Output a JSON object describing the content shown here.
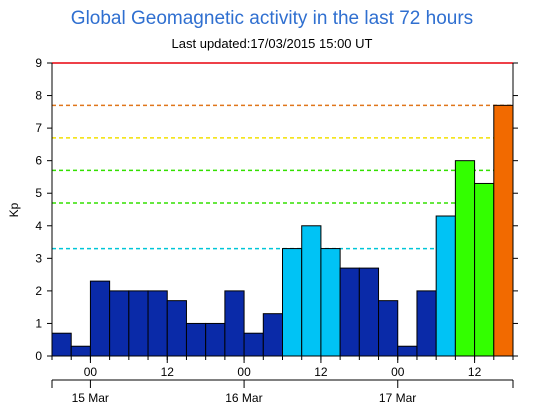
{
  "title": "Global Geomagnetic activity in the last 72 hours",
  "subtitle": "Last updated:17/03/2015 15:00 UT",
  "colors": {
    "quiet": "#0a2aa8",
    "kp4": "#00c3f5",
    "kp5": "#33ff00",
    "kp6": "#33ff00",
    "kp7": "#f26a00",
    "edge": "#000000"
  },
  "chart_data": {
    "type": "bar",
    "ylabel": "Kp",
    "xlabel": "",
    "ylim": [
      0,
      9
    ],
    "yticks": [
      "0",
      "1",
      "2",
      "3",
      "4",
      "5",
      "6",
      "7",
      "8",
      "9"
    ],
    "xticks": [
      "00",
      "12",
      "00",
      "12",
      "00",
      "12"
    ],
    "day_labels": [
      "15 Mar",
      "16 Mar",
      "17 Mar"
    ],
    "values": [
      0.7,
      0.3,
      2.3,
      2.0,
      2.0,
      2.0,
      1.7,
      1.0,
      1.0,
      2.0,
      0.7,
      1.3,
      3.3,
      4.0,
      3.3,
      2.7,
      2.7,
      1.7,
      0.3,
      2.0,
      4.3,
      6.0,
      5.3,
      7.7
    ],
    "threshold_lines": [
      {
        "value": 9,
        "color": "#e8000b",
        "style": "solid"
      },
      {
        "value": 7.7,
        "color": "#e0761b",
        "style": "dashed"
      },
      {
        "value": 6.7,
        "color": "#f2e100",
        "style": "dashed"
      },
      {
        "value": 5.7,
        "color": "#33e000",
        "style": "dashed"
      },
      {
        "value": 4.7,
        "color": "#33e000",
        "style": "dashed"
      },
      {
        "value": 3.3,
        "color": "#00c6d8",
        "style": "dashed"
      }
    ],
    "grid": false
  }
}
